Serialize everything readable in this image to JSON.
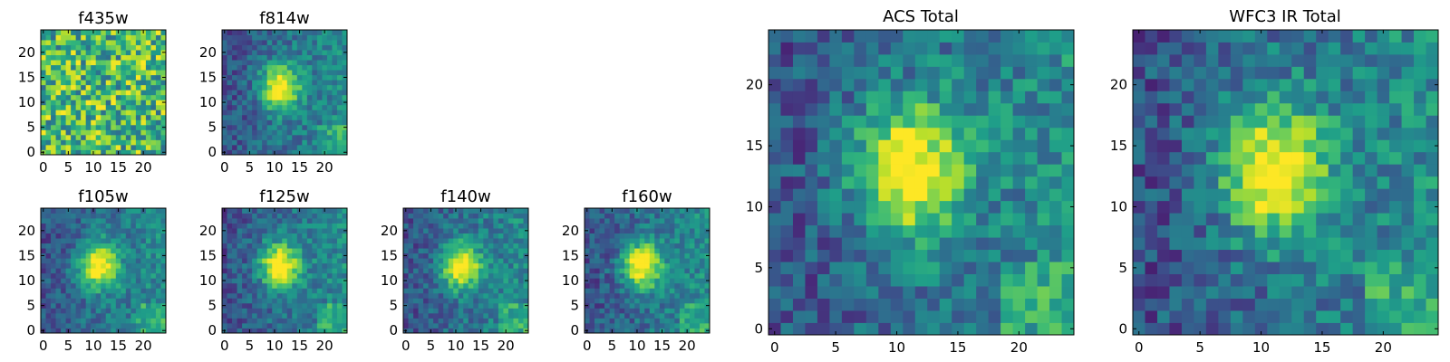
{
  "chart_data": [
    {
      "type": "heatmap",
      "title": "f435w",
      "colormap": "viridis",
      "size": 25,
      "xticks": [
        "0",
        "5",
        "10",
        "15",
        "20"
      ],
      "yticks": [
        "0",
        "5",
        "10",
        "15",
        "20"
      ],
      "xlim": [
        -0.5,
        24.5
      ],
      "ylim": [
        -0.5,
        24.5
      ],
      "profile": "noise",
      "peak": [
        11,
        13
      ]
    },
    {
      "type": "heatmap",
      "title": "f814w",
      "colormap": "viridis",
      "size": 25,
      "xticks": [
        "0",
        "5",
        "10",
        "15",
        "20"
      ],
      "yticks": [
        "0",
        "5",
        "10",
        "15",
        "20"
      ],
      "xlim": [
        -0.5,
        24.5
      ],
      "ylim": [
        -0.5,
        24.5
      ],
      "profile": "source",
      "peak": [
        11,
        13
      ]
    },
    {
      "type": "heatmap",
      "title": "f105w",
      "colormap": "viridis",
      "size": 25,
      "xticks": [
        "0",
        "5",
        "10",
        "15",
        "20"
      ],
      "yticks": [
        "0",
        "5",
        "10",
        "15",
        "20"
      ],
      "xlim": [
        -0.5,
        24.5
      ],
      "ylim": [
        -0.5,
        24.5
      ],
      "profile": "source",
      "peak": [
        11,
        13
      ]
    },
    {
      "type": "heatmap",
      "title": "f125w",
      "colormap": "viridis",
      "size": 25,
      "xticks": [
        "0",
        "5",
        "10",
        "15",
        "20"
      ],
      "yticks": [
        "0",
        "5",
        "10",
        "15",
        "20"
      ],
      "xlim": [
        -0.5,
        24.5
      ],
      "ylim": [
        -0.5,
        24.5
      ],
      "profile": "source",
      "peak": [
        11,
        13
      ]
    },
    {
      "type": "heatmap",
      "title": "f140w",
      "colormap": "viridis",
      "size": 25,
      "xticks": [
        "0",
        "5",
        "10",
        "15",
        "20"
      ],
      "yticks": [
        "0",
        "5",
        "10",
        "15",
        "20"
      ],
      "xlim": [
        -0.5,
        24.5
      ],
      "ylim": [
        -0.5,
        24.5
      ],
      "profile": "source",
      "peak": [
        11,
        13
      ]
    },
    {
      "type": "heatmap",
      "title": "f160w",
      "colormap": "viridis",
      "size": 25,
      "xticks": [
        "0",
        "5",
        "10",
        "15",
        "20"
      ],
      "yticks": [
        "0",
        "5",
        "10",
        "15",
        "20"
      ],
      "xlim": [
        -0.5,
        24.5
      ],
      "ylim": [
        -0.5,
        24.5
      ],
      "profile": "source",
      "peak": [
        11,
        13
      ]
    },
    {
      "type": "heatmap",
      "title": "ACS Total",
      "colormap": "viridis",
      "size": 25,
      "xticks": [
        "0",
        "5",
        "10",
        "15",
        "20"
      ],
      "yticks": [
        "0",
        "5",
        "10",
        "15",
        "20"
      ],
      "xlim": [
        -0.5,
        24.5
      ],
      "ylim": [
        -0.5,
        24.5
      ],
      "profile": "source",
      "peak": [
        11,
        13
      ]
    },
    {
      "type": "heatmap",
      "title": "WFC3 IR Total",
      "colormap": "viridis",
      "size": 25,
      "xticks": [
        "0",
        "5",
        "10",
        "15",
        "20"
      ],
      "yticks": [
        "0",
        "5",
        "10",
        "15",
        "20"
      ],
      "xlim": [
        -0.5,
        24.5
      ],
      "ylim": [
        -0.5,
        24.5
      ],
      "profile": "source",
      "peak": [
        11,
        13
      ]
    }
  ]
}
